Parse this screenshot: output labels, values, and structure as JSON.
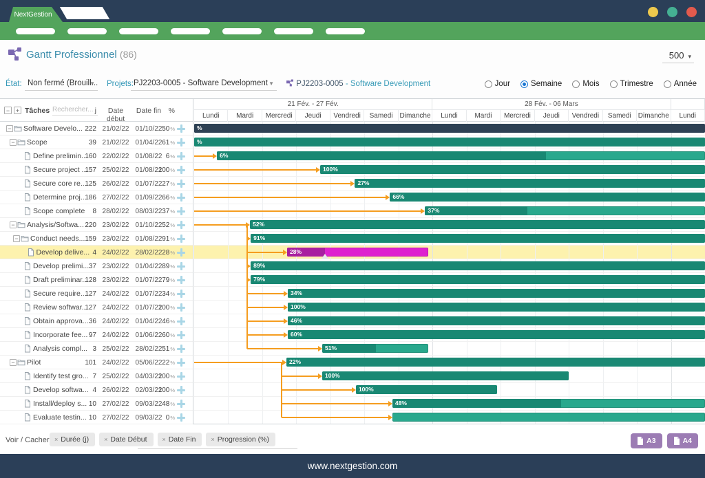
{
  "window": {
    "brand": "NextGestion",
    "dot_colors": [
      "#eec94d",
      "#45b093",
      "#e25a4d"
    ]
  },
  "nav": {
    "pill_count": 7
  },
  "page": {
    "title": "Gantt Professionnel",
    "count": "(86)",
    "page_size": "500",
    "footer_url": "www.nextgestion.com"
  },
  "filters": {
    "etat_label": "État:",
    "etat_value": "Non fermé (Brouill...",
    "projets_label": "Projets:",
    "projets_value": "PJ2203-0005 - Software Development",
    "link_code": "PJ2203-0005",
    "link_name": "- Software Development"
  },
  "view_modes": [
    {
      "label": "Jour",
      "checked": false
    },
    {
      "label": "Semaine",
      "checked": true
    },
    {
      "label": "Mois",
      "checked": false
    },
    {
      "label": "Trimestre",
      "checked": false
    },
    {
      "label": "Année",
      "checked": false
    }
  ],
  "table_header": {
    "tasks_label": "Tâches",
    "search_placeholder": "Rechercher...",
    "duration": "j",
    "start": "Date début",
    "end": "Date fin",
    "pct": "%"
  },
  "voir_cacher": {
    "label": "Voir / Cacher:",
    "chips": [
      "Durée (j)",
      "Date Début",
      "Date Fin",
      "Progression (%)"
    ]
  },
  "print_buttons": [
    "A3",
    "A4"
  ],
  "colors": {
    "navy": "#2b3f58",
    "green": "#53a45c",
    "navy_bar": "#2e4154",
    "teal_light": "#29a88d",
    "teal_dark": "#198873",
    "magenta_light": "#de21cf",
    "magenta_dark": "#a81fa0",
    "orange": "#f59d1f",
    "selection_yellow": "#fdf2ae",
    "purple": "#9c7cb4",
    "radio_blue": "#1976d2",
    "title_teal": "#3a8cab"
  },
  "chart_data": {
    "type": "gantt",
    "weeks": [
      {
        "label": "21 Fév. - 27 Fév.",
        "span": 7
      },
      {
        "label": "28 Fév. - 06 Mars",
        "span": 7
      },
      {
        "label": "",
        "span": 1
      }
    ],
    "days": [
      "Lundi",
      "Mardi",
      "Mercredi",
      "Jeudi",
      "Vendredi",
      "Samedi",
      "Dimanche",
      "Lundi",
      "Mardi",
      "Mercredi",
      "Jeudi",
      "Vendredi",
      "Samedi",
      "Dimanche",
      "Lundi"
    ],
    "total_days": 15,
    "connectors": [
      {
        "x": 1.56,
        "from": 7,
        "to": 16
      },
      {
        "x": 2.57,
        "from": 17,
        "to": 21
      }
    ],
    "tasks": [
      {
        "name": "Software Develo...",
        "type": "folder",
        "level": 0,
        "j": 222,
        "start": "21/02/22",
        "end": "01/10/22",
        "pct": 50,
        "selected": false,
        "gantt": {
          "s": 0,
          "e": 15,
          "p": 15,
          "color": "navy",
          "label": "%",
          "arrow": null,
          "handle": false
        }
      },
      {
        "name": "Scope",
        "type": "folder",
        "level": 1,
        "j": 39,
        "start": "21/02/22",
        "end": "01/04/22",
        "pct": 61,
        "selected": false,
        "gantt": {
          "s": 0,
          "e": 15,
          "p": 15,
          "color": "teal",
          "label": "%",
          "arrow": null,
          "handle": false
        }
      },
      {
        "name": "Define prelimin...",
        "type": "leaf",
        "level": 2,
        "j": 160,
        "start": "22/02/22",
        "end": "01/08/22",
        "pct": 6,
        "selected": false,
        "gantt": {
          "s": 0.67,
          "e": 15,
          "p": 10.34,
          "color": "teal",
          "label": "6%",
          "arrow": 0,
          "handle": false
        }
      },
      {
        "name": "Secure project ...",
        "type": "leaf",
        "level": 2,
        "j": 157,
        "start": "25/02/22",
        "end": "01/08/22",
        "pct": 100,
        "selected": false,
        "gantt": {
          "s": 3.7,
          "e": 15,
          "p": 15,
          "color": "teal",
          "label": "100%",
          "arrow": 0,
          "handle": false
        }
      },
      {
        "name": "Secure core re...",
        "type": "leaf",
        "level": 2,
        "j": 125,
        "start": "26/02/22",
        "end": "01/07/22",
        "pct": 27,
        "selected": false,
        "gantt": {
          "s": 4.72,
          "e": 15,
          "p": 15,
          "color": "teal",
          "label": "27%",
          "arrow": 0,
          "handle": false
        }
      },
      {
        "name": "Determine proj...",
        "type": "leaf",
        "level": 2,
        "j": 186,
        "start": "27/02/22",
        "end": "01/09/22",
        "pct": 66,
        "selected": false,
        "gantt": {
          "s": 5.75,
          "e": 15,
          "p": 15,
          "color": "teal",
          "label": "66%",
          "arrow": 0,
          "handle": false
        }
      },
      {
        "name": "Scope complete",
        "type": "leaf",
        "level": 2,
        "j": 8,
        "start": "28/02/22",
        "end": "08/03/22",
        "pct": 37,
        "selected": false,
        "gantt": {
          "s": 6.78,
          "e": 15,
          "p": 9.78,
          "color": "teal",
          "label": "37%",
          "arrow": 0,
          "handle": false
        }
      },
      {
        "name": "Analysis/Softwa...",
        "type": "folder",
        "level": 1,
        "j": 220,
        "start": "23/02/22",
        "end": "01/10/22",
        "pct": 52,
        "selected": false,
        "gantt": {
          "s": 1.64,
          "e": 15,
          "p": 15,
          "color": "teal",
          "label": "52%",
          "arrow": 0,
          "handle": false
        }
      },
      {
        "name": "Conduct needs...",
        "type": "folder",
        "level": 2,
        "j": 159,
        "start": "23/02/22",
        "end": "01/08/22",
        "pct": 91,
        "selected": false,
        "gantt": {
          "s": 1.66,
          "e": 15,
          "p": 15,
          "color": "teal",
          "label": "91%",
          "arrow": 1.56,
          "handle": false
        }
      },
      {
        "name": "Develop delive...",
        "type": "leaf",
        "level": 3,
        "j": 4,
        "start": "24/02/22",
        "end": "28/02/22",
        "pct": 28,
        "selected": true,
        "gantt": {
          "s": 2.73,
          "e": 6.87,
          "p": 3.84,
          "color": "magenta",
          "label": "28%",
          "arrow": 1.56,
          "handle": true
        }
      },
      {
        "name": "Develop prelimi...",
        "type": "leaf",
        "level": 2,
        "j": 37,
        "start": "23/02/22",
        "end": "01/04/22",
        "pct": 89,
        "selected": false,
        "gantt": {
          "s": 1.66,
          "e": 15,
          "p": 15,
          "color": "teal",
          "label": "89%",
          "arrow": 1.56,
          "handle": false
        }
      },
      {
        "name": "Draft preliminar...",
        "type": "leaf",
        "level": 2,
        "j": 128,
        "start": "23/02/22",
        "end": "01/07/22",
        "pct": 79,
        "selected": false,
        "gantt": {
          "s": 1.66,
          "e": 15,
          "p": 15,
          "color": "teal",
          "label": "79%",
          "arrow": 1.56,
          "handle": false
        }
      },
      {
        "name": "Secure require...",
        "type": "leaf",
        "level": 2,
        "j": 127,
        "start": "24/02/22",
        "end": "01/07/22",
        "pct": 34,
        "selected": false,
        "gantt": {
          "s": 2.75,
          "e": 15,
          "p": 15,
          "color": "teal",
          "label": "34%",
          "arrow": 1.56,
          "handle": false
        }
      },
      {
        "name": "Review softwar...",
        "type": "leaf",
        "level": 2,
        "j": 127,
        "start": "24/02/22",
        "end": "01/07/22",
        "pct": 100,
        "selected": false,
        "gantt": {
          "s": 2.75,
          "e": 15,
          "p": 15,
          "color": "teal",
          "label": "100%",
          "arrow": 1.56,
          "handle": false
        }
      },
      {
        "name": "Obtain approva...",
        "type": "leaf",
        "level": 2,
        "j": 36,
        "start": "24/02/22",
        "end": "01/04/22",
        "pct": 46,
        "selected": false,
        "gantt": {
          "s": 2.75,
          "e": 15,
          "p": 15,
          "color": "teal",
          "label": "46%",
          "arrow": 1.56,
          "handle": false
        }
      },
      {
        "name": "Incorporate fee...",
        "type": "leaf",
        "level": 2,
        "j": 97,
        "start": "24/02/22",
        "end": "01/06/22",
        "pct": 60,
        "selected": false,
        "gantt": {
          "s": 2.75,
          "e": 15,
          "p": 15,
          "color": "teal",
          "label": "60%",
          "arrow": 1.56,
          "handle": false
        }
      },
      {
        "name": "Analysis compl...",
        "type": "leaf",
        "level": 2,
        "j": 3,
        "start": "25/02/22",
        "end": "28/02/22",
        "pct": 51,
        "selected": false,
        "gantt": {
          "s": 3.76,
          "e": 6.87,
          "p": 5.33,
          "color": "teal",
          "label": "51%",
          "arrow": 1.56,
          "handle": false
        }
      },
      {
        "name": "Pilot",
        "type": "folder",
        "level": 1,
        "j": 101,
        "start": "24/02/22",
        "end": "05/06/22",
        "pct": 22,
        "selected": false,
        "gantt": {
          "s": 2.71,
          "e": 15,
          "p": 15,
          "color": "teal",
          "label": "22%",
          "arrow": 0,
          "handle": false
        }
      },
      {
        "name": "Identify test gro...",
        "type": "leaf",
        "level": 2,
        "j": 7,
        "start": "25/02/22",
        "end": "04/03/22",
        "pct": 100,
        "selected": false,
        "gantt": {
          "s": 3.76,
          "e": 11.0,
          "p": 11.0,
          "color": "teal",
          "label": "100%",
          "arrow": 2.57,
          "handle": false
        }
      },
      {
        "name": "Develop softwa...",
        "type": "leaf",
        "level": 2,
        "j": 4,
        "start": "26/02/22",
        "end": "02/03/22",
        "pct": 100,
        "selected": false,
        "gantt": {
          "s": 4.75,
          "e": 8.9,
          "p": 8.9,
          "color": "teal",
          "label": "100%",
          "arrow": 2.57,
          "handle": false
        }
      },
      {
        "name": "Install/deploy s...",
        "type": "leaf",
        "level": 2,
        "j": 10,
        "start": "27/02/22",
        "end": "09/03/22",
        "pct": 48,
        "selected": false,
        "gantt": {
          "s": 5.82,
          "e": 15,
          "p": 10.77,
          "color": "teal",
          "label": "48%",
          "arrow": 2.57,
          "handle": false
        }
      },
      {
        "name": "Evaluate testin...",
        "type": "leaf",
        "level": 2,
        "j": 10,
        "start": "27/02/22",
        "end": "09/03/22",
        "pct": 0,
        "selected": false,
        "gantt": {
          "s": 5.82,
          "e": 15,
          "p": 5.82,
          "color": "teal",
          "label": "",
          "arrow": 2.57,
          "handle": false
        }
      }
    ]
  }
}
